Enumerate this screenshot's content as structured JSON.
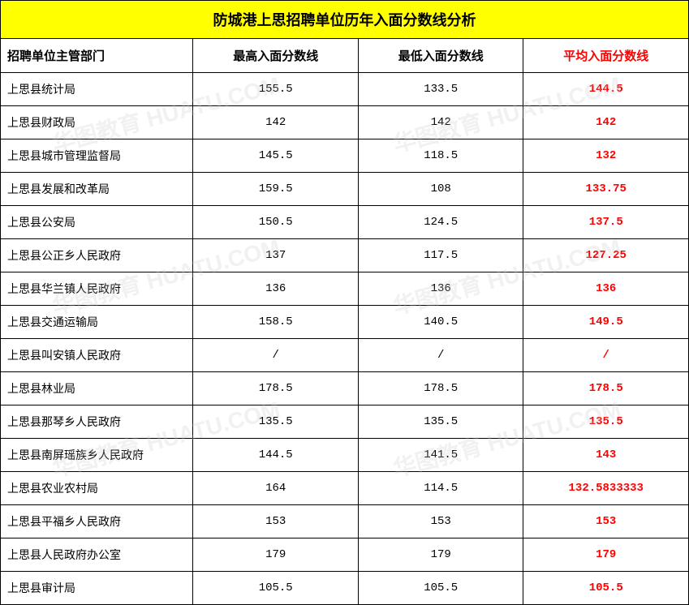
{
  "table": {
    "title": "防城港上思招聘单位历年入面分数线分析",
    "title_bg": "#ffff00",
    "title_color": "#000000",
    "title_fontsize": 18,
    "border_color": "#000000",
    "columns": [
      {
        "label": "招聘单位主管部门",
        "align": "left",
        "color": "#000000"
      },
      {
        "label": "最高入面分数线",
        "align": "center",
        "color": "#000000"
      },
      {
        "label": "最低入面分数线",
        "align": "center",
        "color": "#000000"
      },
      {
        "label": "平均入面分数线",
        "align": "center",
        "color": "#ff0000"
      }
    ],
    "rows": [
      {
        "dept": "上思县统计局",
        "max": "155.5",
        "min": "133.5",
        "avg": "144.5"
      },
      {
        "dept": "上思县财政局",
        "max": "142",
        "min": "142",
        "avg": "142"
      },
      {
        "dept": "上思县城市管理监督局",
        "max": "145.5",
        "min": "118.5",
        "avg": "132"
      },
      {
        "dept": "上思县发展和改革局",
        "max": "159.5",
        "min": "108",
        "avg": "133.75"
      },
      {
        "dept": "上思县公安局",
        "max": "150.5",
        "min": "124.5",
        "avg": "137.5"
      },
      {
        "dept": "上思县公正乡人民政府",
        "max": "137",
        "min": "117.5",
        "avg": "127.25"
      },
      {
        "dept": "上思县华兰镇人民政府",
        "max": "136",
        "min": "136",
        "avg": "136"
      },
      {
        "dept": "上思县交通运输局",
        "max": "158.5",
        "min": "140.5",
        "avg": "149.5"
      },
      {
        "dept": "上思县叫安镇人民政府",
        "max": "/",
        "min": "/",
        "avg": "/"
      },
      {
        "dept": "上思县林业局",
        "max": "178.5",
        "min": "178.5",
        "avg": "178.5"
      },
      {
        "dept": "上思县那琴乡人民政府",
        "max": "135.5",
        "min": "135.5",
        "avg": "135.5"
      },
      {
        "dept": "上思县南屏瑶族乡人民政府",
        "max": "144.5",
        "min": "141.5",
        "avg": "143"
      },
      {
        "dept": "上思县农业农村局",
        "max": "164",
        "min": "114.5",
        "avg": "132.5833333"
      },
      {
        "dept": "上思县平福乡人民政府",
        "max": "153",
        "min": "153",
        "avg": "153"
      },
      {
        "dept": "上思县人民政府办公室",
        "max": "179",
        "min": "179",
        "avg": "179"
      },
      {
        "dept": "上思县审计局",
        "max": "105.5",
        "min": "105.5",
        "avg": "105.5"
      }
    ],
    "avg_color": "#ff0000",
    "data_fontsize": 14,
    "header_fontsize": 15
  },
  "watermark": {
    "text": "华图教育 HUATU.COM",
    "color": "rgba(200,200,200,0.25)"
  }
}
